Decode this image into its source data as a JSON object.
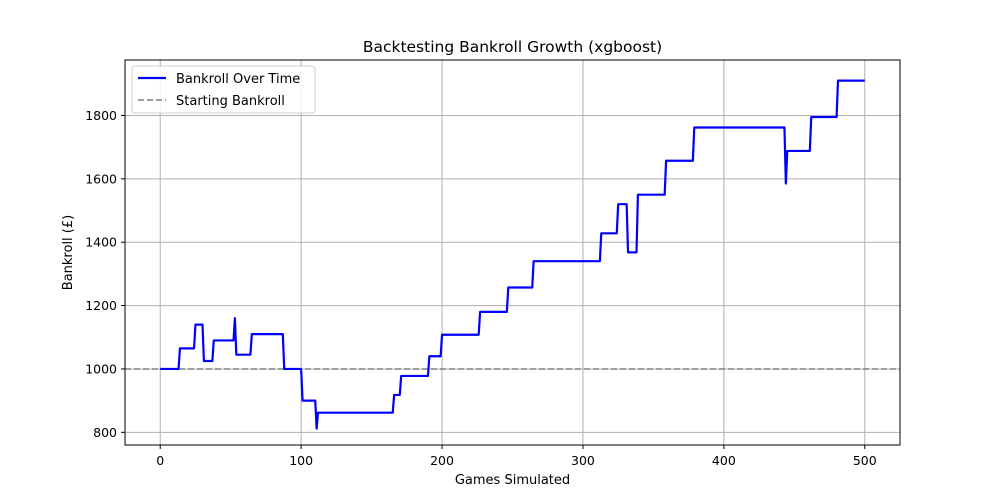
{
  "chart_data": {
    "type": "line",
    "title": "Backtesting Bankroll Growth (xgboost)",
    "xlabel": "Games Simulated",
    "ylabel": "Bankroll (£)",
    "xlim": [
      -25,
      525
    ],
    "ylim": [
      760,
      1975
    ],
    "xticks": [
      0,
      100,
      200,
      300,
      400,
      500
    ],
    "yticks": [
      800,
      1000,
      1200,
      1400,
      1600,
      1800
    ],
    "grid": true,
    "legend_position": "upper-left",
    "series": [
      {
        "name": "Bankroll Over Time",
        "color": "#0000ff",
        "style": "solid",
        "x": [
          0,
          13,
          14,
          24,
          25,
          30,
          31,
          37,
          38,
          52,
          53,
          54,
          64,
          65,
          87,
          88,
          100,
          101,
          102,
          110,
          111,
          112,
          165,
          166,
          170,
          171,
          190,
          191,
          199,
          200,
          226,
          227,
          246,
          247,
          264,
          265,
          312,
          313,
          324,
          325,
          331,
          332,
          338,
          339,
          358,
          359,
          378,
          379,
          442,
          443,
          444,
          445,
          461,
          462,
          480,
          481,
          500
        ],
        "y": [
          1000,
          1000,
          1065,
          1065,
          1140,
          1140,
          1025,
          1025,
          1090,
          1090,
          1160,
          1045,
          1045,
          1110,
          1110,
          1000,
          1000,
          900,
          900,
          900,
          812,
          862,
          862,
          918,
          918,
          978,
          978,
          1040,
          1040,
          1108,
          1108,
          1180,
          1180,
          1257,
          1257,
          1340,
          1340,
          1428,
          1428,
          1520,
          1520,
          1368,
          1368,
          1550,
          1550,
          1657,
          1657,
          1762,
          1762,
          1762,
          1585,
          1688,
          1688,
          1795,
          1795,
          1910,
          1910
        ]
      },
      {
        "name": "Starting Bankroll",
        "color": "#808080",
        "style": "dashed",
        "y_constant": 1000
      }
    ]
  }
}
